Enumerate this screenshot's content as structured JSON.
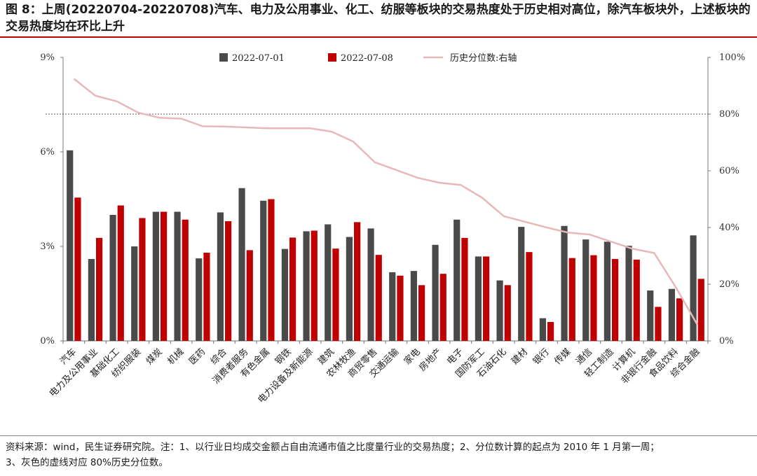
{
  "header": {
    "title": "图 8：上周(20220704-20220708)汽车、电力及公用事业、化工、纺服等板块的交易热度处于历史相对高位，除汽车板块外，上述板块的交易热度均在环比上升"
  },
  "footer": {
    "note_line1": "资料来源：wind，民生证券研究院。注：1、以行业日均成交金额占自由流通市值之比度量行业的交易热度；2、分位数计算的起点为 2010 年 1 月第一周；",
    "note_line2": "3、灰色的虚线对应 80%历史分位数。"
  },
  "colors": {
    "series_0701": "#4a4a4a",
    "series_0708": "#c00000",
    "percentile_line": "#e8b8b8",
    "reference_line": "#555555"
  },
  "chart_data": {
    "type": "bar",
    "categories": [
      "汽车",
      "电力及公用事业",
      "基础化工",
      "纺织服装",
      "煤炭",
      "机械",
      "医药",
      "综合",
      "消费者服务",
      "有色金属",
      "钢铁",
      "电力设备及新能源",
      "建筑",
      "农林牧渔",
      "商贸零售",
      "交通运输",
      "家电",
      "房地产",
      "电子",
      "国防军工",
      "石油石化",
      "建材",
      "银行",
      "传媒",
      "通信",
      "轻工制造",
      "计算机",
      "非银行金融",
      "食品饮料",
      "综合金融"
    ],
    "series": [
      {
        "name": "2022-07-01",
        "axis": "left",
        "values": [
          6.05,
          2.6,
          4.0,
          3.0,
          4.1,
          4.1,
          2.62,
          4.08,
          4.85,
          4.45,
          2.92,
          3.48,
          3.7,
          3.3,
          3.57,
          2.18,
          2.22,
          3.05,
          3.85,
          2.68,
          1.92,
          3.62,
          0.72,
          3.65,
          3.22,
          3.15,
          3.02,
          1.6,
          1.65,
          3.35
        ]
      },
      {
        "name": "2022-07-08",
        "axis": "left",
        "values": [
          4.55,
          3.27,
          4.3,
          3.9,
          4.1,
          3.85,
          2.8,
          3.8,
          2.88,
          4.5,
          3.28,
          3.5,
          2.93,
          3.77,
          2.73,
          2.07,
          1.77,
          2.13,
          3.27,
          2.68,
          1.77,
          2.82,
          0.6,
          2.63,
          2.72,
          2.6,
          2.58,
          1.08,
          1.35,
          1.97
        ]
      },
      {
        "name": "历史分位数:右轴",
        "axis": "right",
        "type": "line",
        "values": [
          92.5,
          86.5,
          84.5,
          80.5,
          78.7,
          78.4,
          75.7,
          75.6,
          75.3,
          75.0,
          75.0,
          75.0,
          73.8,
          70.3,
          63.0,
          60.3,
          57.5,
          55.8,
          55.0,
          50.5,
          44.0,
          42.0,
          40.0,
          38.2,
          37.5,
          35.0,
          32.5,
          31.0,
          19.0,
          5.8
        ]
      }
    ],
    "y_left": {
      "min": 0,
      "max": 9,
      "ticks": [
        "0%",
        "3%",
        "6%",
        "9%"
      ],
      "tick_values": [
        0,
        3,
        6,
        9
      ]
    },
    "y_right": {
      "min": 0,
      "max": 100,
      "ticks": [
        "0%",
        "20%",
        "40%",
        "60%",
        "80%",
        "100%"
      ],
      "tick_values": [
        0,
        20,
        40,
        60,
        80,
        100
      ]
    },
    "reference_line": {
      "axis": "right",
      "value": 80,
      "style": "dashed"
    },
    "legend_position": "top-center",
    "grid": false
  }
}
